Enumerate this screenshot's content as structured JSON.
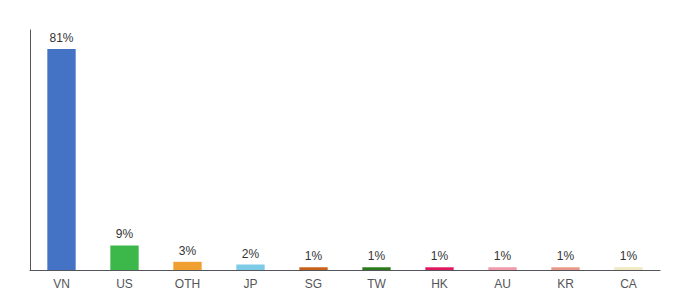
{
  "chart_data": {
    "type": "bar",
    "categories": [
      "VN",
      "US",
      "OTH",
      "JP",
      "SG",
      "TW",
      "HK",
      "AU",
      "KR",
      "CA"
    ],
    "values": [
      81,
      9,
      3,
      2,
      1,
      1,
      1,
      1,
      1,
      1
    ],
    "value_labels": [
      "81%",
      "9%",
      "3%",
      "2%",
      "1%",
      "1%",
      "1%",
      "1%",
      "1%",
      "1%"
    ],
    "colors": [
      "#4472c4",
      "#3cb84a",
      "#f0a030",
      "#7ecbe8",
      "#c8601a",
      "#2a7a1a",
      "#e0185c",
      "#f09aaa",
      "#e89888",
      "#f0e8c0"
    ],
    "ylim": [
      0,
      88
    ],
    "grid": false,
    "data_labels": true,
    "tick_labels": "x"
  }
}
